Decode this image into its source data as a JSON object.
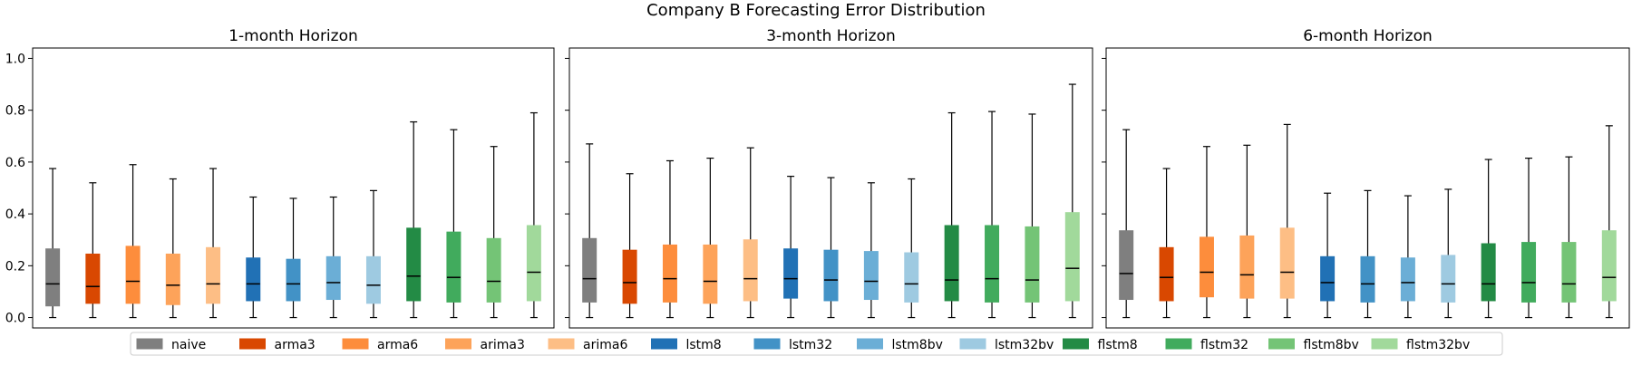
{
  "figure_title": "Company B Forecasting Error Distribution",
  "chart_data": [
    {
      "type": "box",
      "title": "1-month Horizon",
      "ylim": [
        -0.04,
        1.04
      ],
      "yticks": [
        0.0,
        0.2,
        0.4,
        0.6,
        0.8,
        1.0
      ],
      "ytick_labels": [
        "0.0",
        "0.2",
        "0.4",
        "0.6",
        "0.8",
        "1.0"
      ],
      "show_y_labels": true,
      "series": [
        {
          "name": "naive",
          "whislo": 0.0,
          "q1": 0.045,
          "med": 0.13,
          "q3": 0.265,
          "whishi": 0.575
        },
        {
          "name": "arma3",
          "whislo": 0.0,
          "q1": 0.055,
          "med": 0.12,
          "q3": 0.245,
          "whishi": 0.52
        },
        {
          "name": "arma6",
          "whislo": 0.0,
          "q1": 0.055,
          "med": 0.14,
          "q3": 0.275,
          "whishi": 0.59
        },
        {
          "name": "arima3",
          "whislo": 0.0,
          "q1": 0.05,
          "med": 0.125,
          "q3": 0.245,
          "whishi": 0.535
        },
        {
          "name": "arima6",
          "whislo": 0.0,
          "q1": 0.055,
          "med": 0.13,
          "q3": 0.27,
          "whishi": 0.575
        },
        {
          "name": "lstm8",
          "whislo": 0.0,
          "q1": 0.065,
          "med": 0.13,
          "q3": 0.23,
          "whishi": 0.465
        },
        {
          "name": "lstm32",
          "whislo": 0.0,
          "q1": 0.065,
          "med": 0.13,
          "q3": 0.225,
          "whishi": 0.46
        },
        {
          "name": "lstm8bv",
          "whislo": 0.0,
          "q1": 0.07,
          "med": 0.135,
          "q3": 0.235,
          "whishi": 0.465
        },
        {
          "name": "lstm32bv",
          "whislo": 0.0,
          "q1": 0.055,
          "med": 0.125,
          "q3": 0.235,
          "whishi": 0.49
        },
        {
          "name": "flstm8",
          "whislo": 0.0,
          "q1": 0.065,
          "med": 0.16,
          "q3": 0.345,
          "whishi": 0.755
        },
        {
          "name": "flstm32",
          "whislo": 0.0,
          "q1": 0.06,
          "med": 0.155,
          "q3": 0.33,
          "whishi": 0.725
        },
        {
          "name": "flstm8bv",
          "whislo": 0.0,
          "q1": 0.06,
          "med": 0.14,
          "q3": 0.305,
          "whishi": 0.66
        },
        {
          "name": "flstm32bv",
          "whislo": 0.0,
          "q1": 0.065,
          "med": 0.175,
          "q3": 0.355,
          "whishi": 0.79
        }
      ]
    },
    {
      "type": "box",
      "title": "3-month Horizon",
      "ylim": [
        -0.04,
        1.04
      ],
      "yticks": [
        0.0,
        0.2,
        0.4,
        0.6,
        0.8,
        1.0
      ],
      "ytick_labels": [
        "0.0",
        "0.2",
        "0.4",
        "0.6",
        "0.8",
        "1.0"
      ],
      "show_y_labels": false,
      "series": [
        {
          "name": "naive",
          "whislo": 0.0,
          "q1": 0.06,
          "med": 0.15,
          "q3": 0.305,
          "whishi": 0.67
        },
        {
          "name": "arma3",
          "whislo": 0.0,
          "q1": 0.055,
          "med": 0.135,
          "q3": 0.26,
          "whishi": 0.555
        },
        {
          "name": "arma6",
          "whislo": 0.0,
          "q1": 0.06,
          "med": 0.15,
          "q3": 0.28,
          "whishi": 0.605
        },
        {
          "name": "arima3",
          "whislo": 0.0,
          "q1": 0.055,
          "med": 0.14,
          "q3": 0.28,
          "whishi": 0.615
        },
        {
          "name": "arima6",
          "whislo": 0.0,
          "q1": 0.065,
          "med": 0.15,
          "q3": 0.3,
          "whishi": 0.655
        },
        {
          "name": "lstm8",
          "whislo": 0.0,
          "q1": 0.075,
          "med": 0.15,
          "q3": 0.265,
          "whishi": 0.545
        },
        {
          "name": "lstm32",
          "whislo": 0.0,
          "q1": 0.065,
          "med": 0.145,
          "q3": 0.26,
          "whishi": 0.54
        },
        {
          "name": "lstm8bv",
          "whislo": 0.0,
          "q1": 0.07,
          "med": 0.14,
          "q3": 0.255,
          "whishi": 0.52
        },
        {
          "name": "lstm32bv",
          "whislo": 0.0,
          "q1": 0.06,
          "med": 0.13,
          "q3": 0.25,
          "whishi": 0.535
        },
        {
          "name": "flstm8",
          "whislo": 0.0,
          "q1": 0.065,
          "med": 0.145,
          "q3": 0.355,
          "whishi": 0.79
        },
        {
          "name": "flstm32",
          "whislo": 0.0,
          "q1": 0.06,
          "med": 0.15,
          "q3": 0.355,
          "whishi": 0.795
        },
        {
          "name": "flstm8bv",
          "whislo": 0.0,
          "q1": 0.06,
          "med": 0.145,
          "q3": 0.35,
          "whishi": 0.785
        },
        {
          "name": "flstm32bv",
          "whislo": 0.0,
          "q1": 0.065,
          "med": 0.19,
          "q3": 0.405,
          "whishi": 0.9
        }
      ]
    },
    {
      "type": "box",
      "title": "6-month Horizon",
      "ylim": [
        -0.04,
        1.04
      ],
      "yticks": [
        0.0,
        0.2,
        0.4,
        0.6,
        0.8,
        1.0
      ],
      "ytick_labels": [
        "0.0",
        "0.2",
        "0.4",
        "0.6",
        "0.8",
        "1.0"
      ],
      "show_y_labels": false,
      "series": [
        {
          "name": "naive",
          "whislo": 0.0,
          "q1": 0.07,
          "med": 0.17,
          "q3": 0.335,
          "whishi": 0.725
        },
        {
          "name": "arma3",
          "whislo": 0.0,
          "q1": 0.065,
          "med": 0.155,
          "q3": 0.27,
          "whishi": 0.575
        },
        {
          "name": "arma6",
          "whislo": 0.0,
          "q1": 0.08,
          "med": 0.175,
          "q3": 0.31,
          "whishi": 0.66
        },
        {
          "name": "arima3",
          "whislo": 0.0,
          "q1": 0.075,
          "med": 0.165,
          "q3": 0.315,
          "whishi": 0.665
        },
        {
          "name": "arima6",
          "whislo": 0.0,
          "q1": 0.075,
          "med": 0.175,
          "q3": 0.345,
          "whishi": 0.745
        },
        {
          "name": "lstm8",
          "whislo": 0.0,
          "q1": 0.065,
          "med": 0.135,
          "q3": 0.235,
          "whishi": 0.48
        },
        {
          "name": "lstm32",
          "whislo": 0.0,
          "q1": 0.06,
          "med": 0.13,
          "q3": 0.235,
          "whishi": 0.49
        },
        {
          "name": "lstm8bv",
          "whislo": 0.0,
          "q1": 0.065,
          "med": 0.135,
          "q3": 0.23,
          "whishi": 0.47
        },
        {
          "name": "lstm32bv",
          "whislo": 0.0,
          "q1": 0.06,
          "med": 0.13,
          "q3": 0.24,
          "whishi": 0.495
        },
        {
          "name": "flstm8",
          "whislo": 0.0,
          "q1": 0.065,
          "med": 0.13,
          "q3": 0.285,
          "whishi": 0.61
        },
        {
          "name": "flstm32",
          "whislo": 0.0,
          "q1": 0.06,
          "med": 0.135,
          "q3": 0.29,
          "whishi": 0.615
        },
        {
          "name": "flstm8bv",
          "whislo": 0.0,
          "q1": 0.06,
          "med": 0.13,
          "q3": 0.29,
          "whishi": 0.62
        },
        {
          "name": "flstm32bv",
          "whislo": 0.0,
          "q1": 0.065,
          "med": 0.155,
          "q3": 0.335,
          "whishi": 0.74
        }
      ]
    }
  ],
  "legend": {
    "placement": "bottom-center",
    "entries": [
      {
        "label": "naive",
        "color": "#7f7f7f"
      },
      {
        "label": "arma3",
        "color": "#d94801"
      },
      {
        "label": "arma6",
        "color": "#fd8d3c"
      },
      {
        "label": "arima3",
        "color": "#fda35a"
      },
      {
        "label": "arima6",
        "color": "#fdbe85"
      },
      {
        "label": "lstm8",
        "color": "#2171b5"
      },
      {
        "label": "lstm32",
        "color": "#4292c6"
      },
      {
        "label": "lstm8bv",
        "color": "#6baed6"
      },
      {
        "label": "lstm32bv",
        "color": "#9ecae1"
      },
      {
        "label": "flstm8",
        "color": "#238b45"
      },
      {
        "label": "flstm32",
        "color": "#41ab5d"
      },
      {
        "label": "flstm8bv",
        "color": "#74c476"
      },
      {
        "label": "flstm32bv",
        "color": "#a1d99b"
      }
    ]
  }
}
